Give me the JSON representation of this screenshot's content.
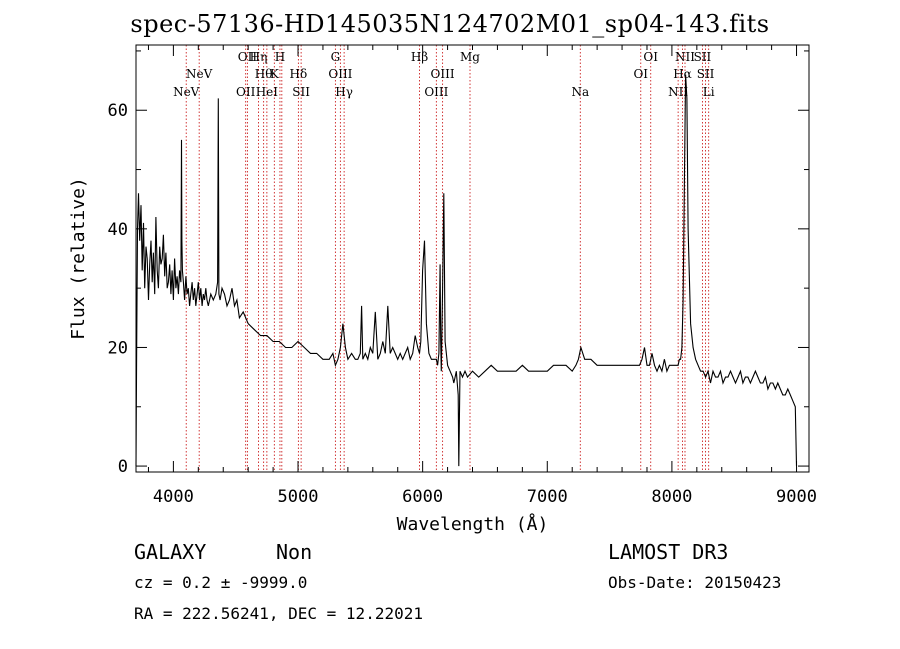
{
  "title": "spec-57136-HD145035N124702M01_sp04-143.fits",
  "info": {
    "class_label": "GALAXY",
    "subclass_label": "Non",
    "survey": "LAMOST DR3",
    "cz_line": "cz = 0.2 ± -9999.0",
    "obs_date": "Obs-Date: 20150423",
    "coords": "RA = 222.56241, DEC =  12.22021"
  },
  "chart_data": {
    "type": "line",
    "xlabel": "Wavelength (Å)",
    "ylabel": "Flux (relative)",
    "xlim": [
      3700,
      9100
    ],
    "ylim": [
      -1,
      71
    ],
    "xticks": [
      4000,
      5000,
      6000,
      7000,
      8000,
      9000
    ],
    "yticks": [
      0,
      20,
      40,
      60
    ],
    "grid": false,
    "series": [
      {
        "x": [
          3700,
          3705,
          3712,
          3720,
          3730,
          3740,
          3750,
          3760,
          3770,
          3780,
          3790,
          3800,
          3810,
          3820,
          3830,
          3840,
          3850,
          3860,
          3870,
          3880,
          3890,
          3900,
          3910,
          3920,
          3930,
          3940,
          3950,
          3960,
          3970,
          3980,
          3990,
          4000,
          4010,
          4020,
          4030,
          4040,
          4050,
          4060,
          4065,
          4068,
          4072,
          4080,
          4090,
          4100,
          4110,
          4120,
          4130,
          4140,
          4150,
          4160,
          4170,
          4180,
          4190,
          4200,
          4210,
          4220,
          4230,
          4240,
          4250,
          4260,
          4270,
          4280,
          4300,
          4320,
          4340,
          4355,
          4360,
          4365,
          4375,
          4390,
          4410,
          4430,
          4450,
          4470,
          4490,
          4510,
          4530,
          4560,
          4600,
          4650,
          4700,
          4750,
          4800,
          4850,
          4900,
          4950,
          5000,
          5050,
          5100,
          5150,
          5200,
          5250,
          5280,
          5300,
          5320,
          5340,
          5360,
          5380,
          5400,
          5430,
          5460,
          5480,
          5500,
          5510,
          5520,
          5540,
          5560,
          5580,
          5600,
          5620,
          5640,
          5660,
          5680,
          5700,
          5720,
          5740,
          5760,
          5780,
          5800,
          5820,
          5840,
          5860,
          5880,
          5900,
          5920,
          5940,
          5960,
          5975,
          5985,
          6000,
          6015,
          6030,
          6050,
          6070,
          6090,
          6110,
          6120,
          6130,
          6140,
          6145,
          6150,
          6160,
          6170,
          6180,
          6200,
          6220,
          6240,
          6250,
          6260,
          6270,
          6285,
          6290,
          6300,
          6320,
          6340,
          6360,
          6400,
          6450,
          6500,
          6550,
          6600,
          6650,
          6700,
          6750,
          6800,
          6850,
          6900,
          6950,
          7000,
          7050,
          7100,
          7150,
          7200,
          7230,
          7250,
          7270,
          7300,
          7350,
          7400,
          7450,
          7500,
          7550,
          7600,
          7650,
          7700,
          7740,
          7760,
          7780,
          7800,
          7820,
          7840,
          7860,
          7880,
          7900,
          7920,
          7940,
          7960,
          7980,
          8000,
          8020,
          8040,
          8050,
          8060,
          8070,
          8080,
          8090,
          8100,
          8110,
          8120,
          8130,
          8150,
          8170,
          8190,
          8210,
          8230,
          8250,
          8270,
          8290,
          8310,
          8330,
          8350,
          8370,
          8390,
          8410,
          8430,
          8450,
          8470,
          8490,
          8510,
          8530,
          8550,
          8570,
          8590,
          8610,
          8630,
          8650,
          8670,
          8690,
          8710,
          8730,
          8750,
          8770,
          8790,
          8810,
          8830,
          8850,
          8870,
          8890,
          8910,
          8930,
          8950,
          8970,
          8990,
          9000
        ],
        "y": [
          0,
          18,
          40,
          46,
          38,
          44,
          33,
          41,
          30,
          37,
          35,
          28,
          34,
          38,
          31,
          36,
          29,
          42,
          33,
          30,
          37,
          34,
          35,
          39,
          32,
          36,
          30,
          31,
          34,
          29,
          33,
          28,
          35,
          30,
          32,
          29,
          33,
          31,
          55,
          38,
          33,
          31,
          28,
          32,
          29,
          30,
          27,
          29,
          31,
          28,
          30,
          27,
          29,
          31,
          28,
          30,
          27,
          29,
          28,
          30,
          28,
          27,
          29,
          28,
          29,
          31,
          62,
          29,
          28,
          30,
          29,
          27,
          28,
          30,
          27,
          28,
          25,
          26,
          24,
          23,
          22,
          22,
          21,
          21,
          20,
          20,
          21,
          20,
          19,
          19,
          18,
          18,
          19,
          17,
          18,
          20,
          24,
          20,
          18,
          19,
          18,
          18,
          19,
          27,
          18,
          19,
          18,
          20,
          19,
          26,
          18,
          19,
          21,
          19,
          27,
          19,
          20,
          19,
          18,
          19,
          18,
          19,
          20,
          18,
          19,
          22,
          20,
          19,
          21,
          33,
          38,
          24,
          19,
          18,
          18,
          18,
          17,
          19,
          34,
          21,
          16,
          30,
          46,
          21,
          17,
          16,
          15,
          14,
          15,
          16,
          12,
          0,
          16,
          15,
          16,
          15,
          16,
          15,
          16,
          17,
          16,
          16,
          16,
          16,
          17,
          16,
          16,
          16,
          16,
          17,
          17,
          17,
          16,
          17,
          18,
          20,
          18,
          18,
          17,
          17,
          17,
          17,
          17,
          17,
          17,
          17,
          18,
          20,
          17,
          17,
          19,
          17,
          16,
          17,
          16,
          18,
          16,
          17,
          17,
          17,
          17,
          17,
          18,
          18,
          20,
          28,
          48,
          66,
          62,
          40,
          24,
          20,
          18,
          17,
          16,
          16,
          15,
          16,
          14,
          16,
          15,
          15,
          16,
          14,
          15,
          15,
          16,
          15,
          14,
          15,
          16,
          14,
          15,
          15,
          14,
          15,
          16,
          15,
          14,
          14,
          15,
          13,
          14,
          14,
          13,
          14,
          13,
          12,
          12,
          13,
          12,
          11,
          10,
          0
        ]
      }
    ],
    "lines": [
      {
        "x": 4103,
        "label": "NeV",
        "row": 3
      },
      {
        "x": 4207,
        "label": "NeV",
        "row": 2
      },
      {
        "x": 4580,
        "label": "OII",
        "row": 3
      },
      {
        "x": 4594,
        "label": "OII",
        "row": 1
      },
      {
        "x": 4683,
        "label": "Hη",
        "row": 1
      },
      {
        "x": 4724,
        "label": "Hθ",
        "row": 2
      },
      {
        "x": 4750,
        "label": "HeI",
        "row": 3
      },
      {
        "x": 4810,
        "label": "K",
        "row": 2
      },
      {
        "x": 4855,
        "label": "H",
        "row": 1
      },
      {
        "x": 4870,
        "label": "",
        "row": 0
      },
      {
        "x": 5003,
        "label": "Hδ",
        "row": 2
      },
      {
        "x": 5025,
        "label": "SII",
        "row": 3
      },
      {
        "x": 5300,
        "label": "G",
        "row": 1
      },
      {
        "x": 5340,
        "label": "OIII",
        "row": 2
      },
      {
        "x": 5370,
        "label": "Hγ",
        "row": 3
      },
      {
        "x": 5975,
        "label": "Hβ",
        "row": 1
      },
      {
        "x": 6110,
        "label": "OIII",
        "row": 3
      },
      {
        "x": 6160,
        "label": "OIII",
        "row": 2
      },
      {
        "x": 6380,
        "label": "Mg",
        "row": 1
      },
      {
        "x": 7265,
        "label": "Na",
        "row": 3
      },
      {
        "x": 7750,
        "label": "OI",
        "row": 2
      },
      {
        "x": 7830,
        "label": "OI",
        "row": 1
      },
      {
        "x": 8050,
        "label": "NII",
        "row": 3
      },
      {
        "x": 8085,
        "label": "Hα",
        "row": 2
      },
      {
        "x": 8105,
        "label": "NII",
        "row": 1
      },
      {
        "x": 8245,
        "label": "SII",
        "row": 1
      },
      {
        "x": 8270,
        "label": "SII",
        "row": 2
      },
      {
        "x": 8295,
        "label": "Li",
        "row": 3
      }
    ]
  }
}
